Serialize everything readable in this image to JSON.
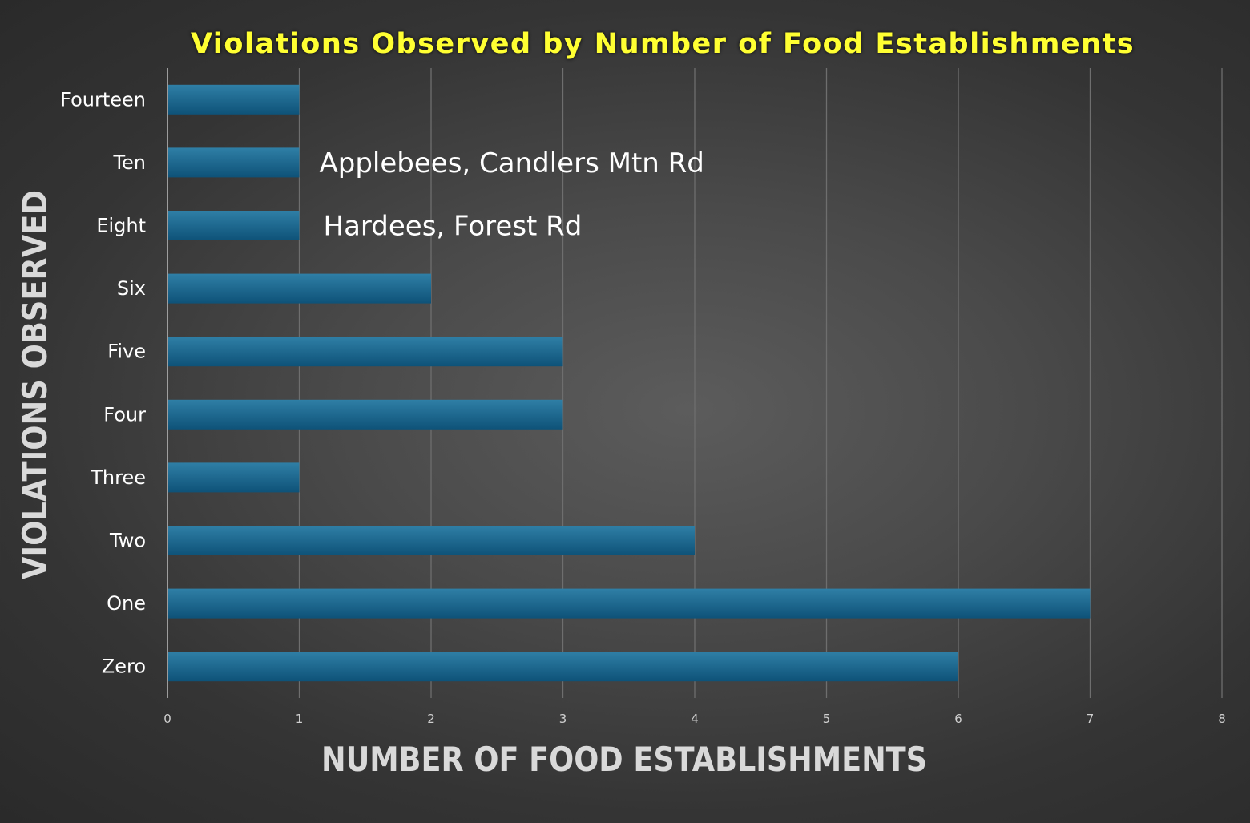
{
  "chart_data": {
    "type": "bar",
    "orientation": "horizontal",
    "title": "Violations Observed by Number of Food Establishments",
    "xlabel": "NUMBER OF FOOD ESTABLISHMENTS",
    "ylabel": "VIOLATIONS OBSERVED",
    "categories": [
      "Zero",
      "One",
      "Two",
      "Three",
      "Four",
      "Five",
      "Six",
      "Eight",
      "Ten",
      "Fourteen"
    ],
    "values": [
      6,
      7,
      4,
      1,
      3,
      3,
      2,
      1,
      1,
      1
    ],
    "xlim": [
      0,
      8
    ],
    "xticks": [
      "0",
      "1",
      "2",
      "3",
      "4",
      "5",
      "6",
      "7",
      "8"
    ],
    "grid": "vertical",
    "annotations": [
      {
        "category": "Ten",
        "text": "Applebees, Candlers Mtn Rd"
      },
      {
        "category": "Eight",
        "text": "Hardees, Forest Rd"
      }
    ],
    "colors": {
      "bar_top": "#2f7fa6",
      "bar_bottom": "#0e5278",
      "title": "#ffff33",
      "gridline": "#6e6e6e",
      "axis_line": "#bfbfbf"
    }
  }
}
